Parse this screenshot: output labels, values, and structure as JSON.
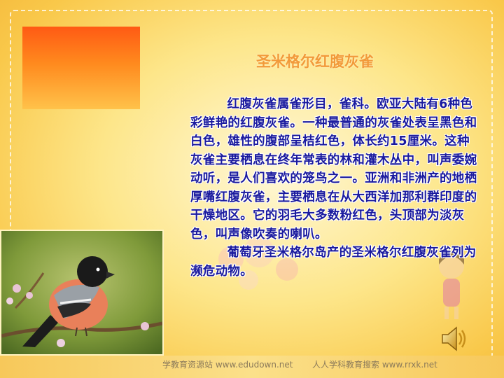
{
  "slide": {
    "title": "圣米格尔红腹灰雀",
    "paragraphs": [
      "红腹灰雀属雀形目，雀科。欧亚大陆有6种色彩鲜艳的红腹灰雀。一种最普通的灰雀处表呈黑色和白色，雄性的腹部呈桔红色，体长约15厘米。这种灰雀主要栖息在终年常表的林和灌木丛中，叫声委婉动听，是人们喜欢的笼鸟之一。亚洲和非洲产的地栖厚嘴红腹灰雀，主要栖息在从大西洋加那利群印度的干燥地区。它的羽毛大多数粉红色，头顶部为淡灰色，叫声像吹奏的喇叭。",
      "葡萄牙圣米格尔岛产的圣米格尔红腹灰雀列为濒危动物。"
    ]
  },
  "watermarks": {
    "left": "学教育资源站 www.edudown.net",
    "right": "人人学科教育搜索 www.rrxk.net"
  },
  "icons": {
    "speaker": "speaker-icon",
    "photo": "bullfinch-photo"
  },
  "colors": {
    "title": "#f29a3a",
    "body_text": "#1a1a9e",
    "background": "#fde68a",
    "accent_box": "#ff5a14"
  }
}
